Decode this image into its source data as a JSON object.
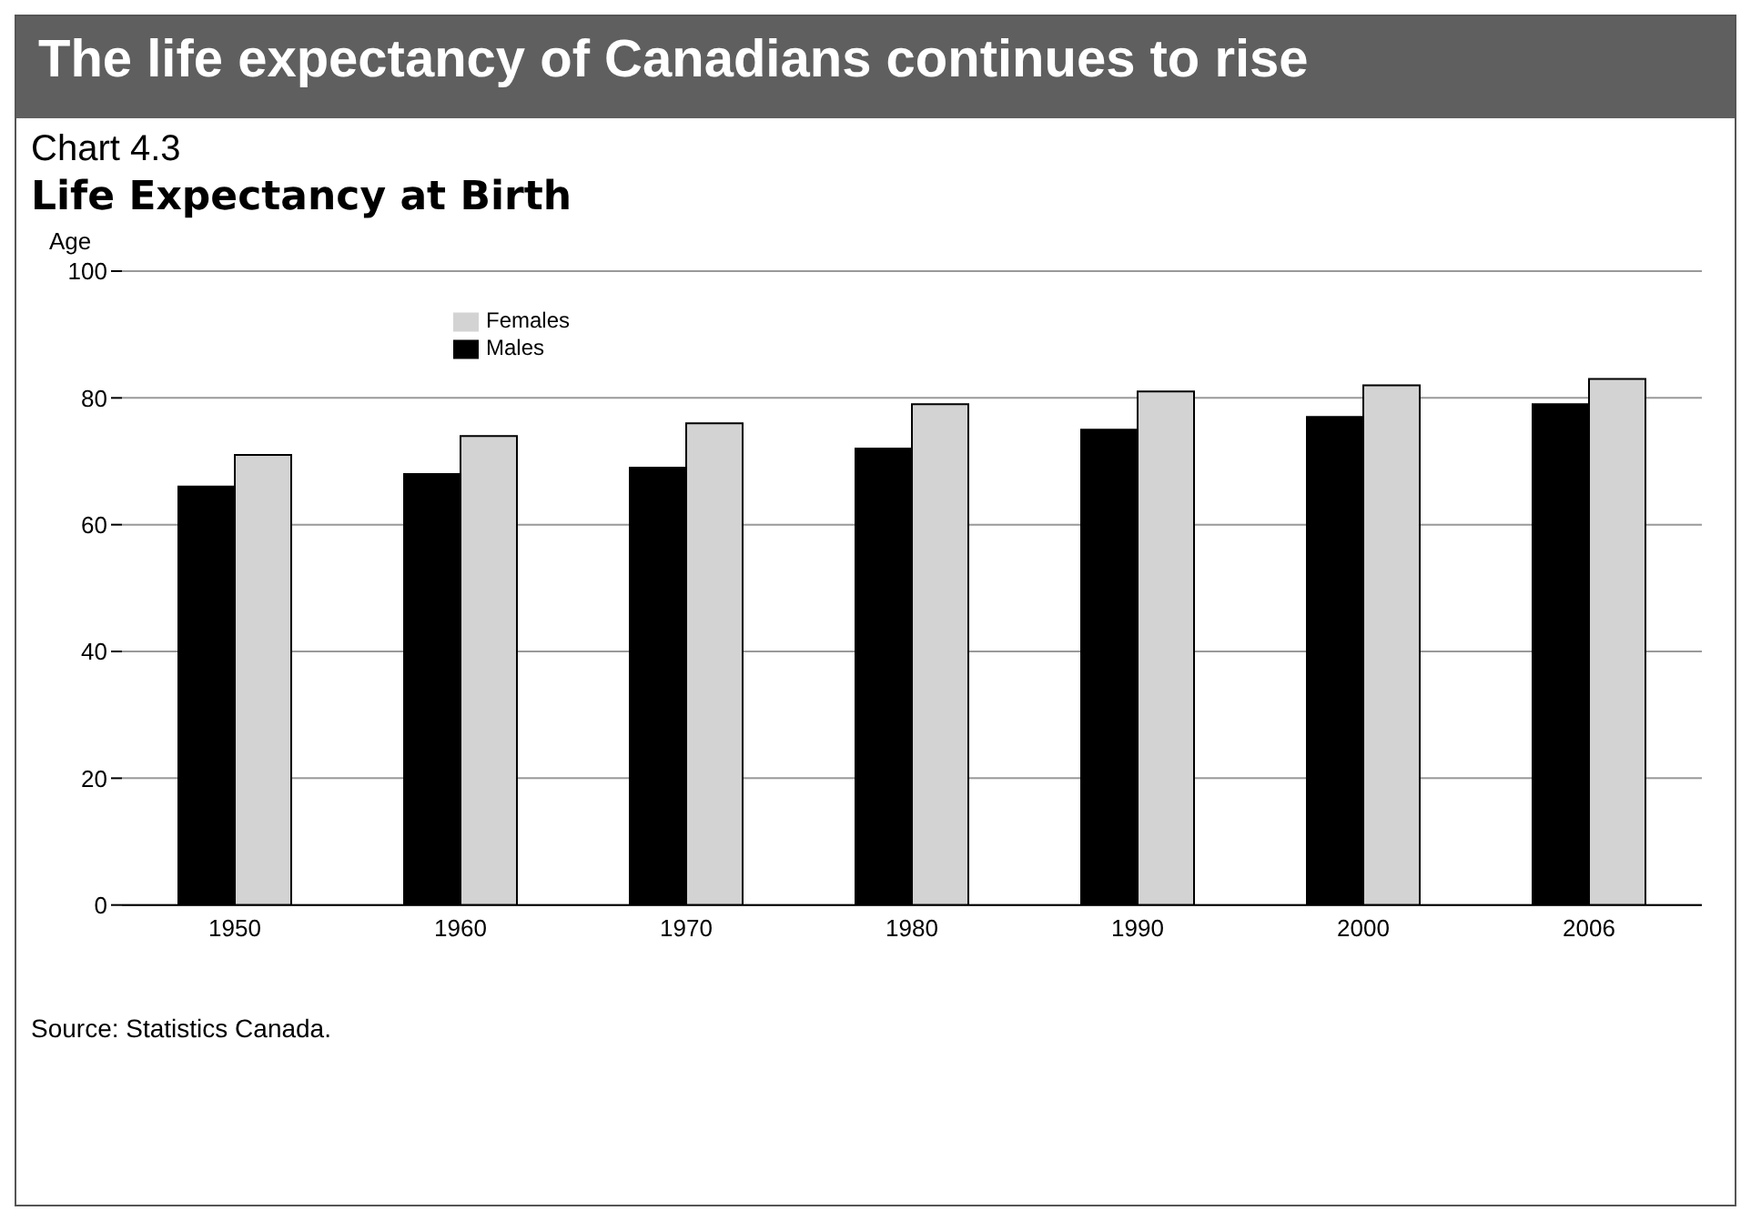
{
  "chart_data": {
    "type": "bar",
    "title": "The life expectancy of Canadians continues to rise",
    "subtitle": "Life Expectancy at Birth",
    "ylabel": "Age",
    "annotations": [
      "Chart 4.3",
      "Source: Statistics Canada."
    ],
    "categories": [
      "1950",
      "1960",
      "1970",
      "1980",
      "1990",
      "2000",
      "2006"
    ],
    "series": [
      {
        "name": "Males",
        "color": "#000000",
        "values": [
          66,
          68,
          69,
          72,
          75,
          77,
          79
        ]
      },
      {
        "name": "Females",
        "color": "#d3d3d3",
        "values": [
          71,
          74,
          76,
          79,
          81,
          82,
          83
        ]
      }
    ],
    "ylim": [
      0,
      100
    ],
    "yticks": [
      0,
      20,
      40,
      60,
      80,
      100
    ],
    "grid": "y",
    "legend": "top left"
  }
}
